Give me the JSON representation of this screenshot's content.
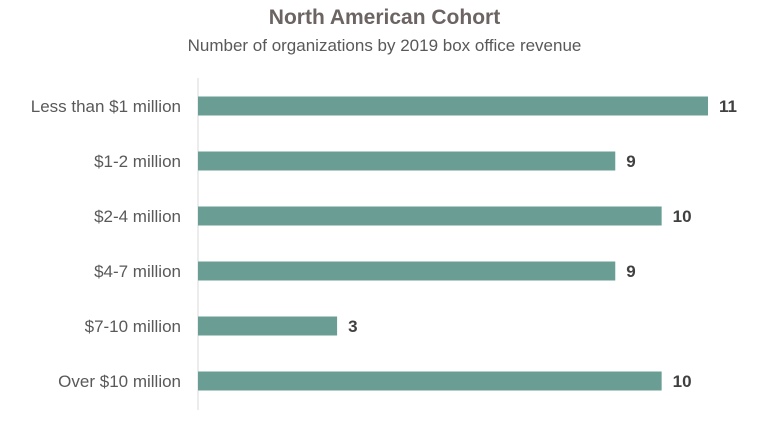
{
  "chart_data": {
    "type": "bar",
    "orientation": "horizontal",
    "title": "North American Cohort",
    "subtitle": "Number of organizations by 2019 box office revenue",
    "categories": [
      "Less than $1 million",
      "$1-2 million",
      "$2-4 million",
      "$4-7 million",
      "$7-10 million",
      "Over $10 million"
    ],
    "values": [
      11,
      9,
      10,
      9,
      3,
      10
    ],
    "xlim": [
      0,
      11
    ],
    "bar_color": "#6a9e94",
    "axis_color": "#d9d9d9",
    "grid": false,
    "legend": "none",
    "data_labels": true
  }
}
